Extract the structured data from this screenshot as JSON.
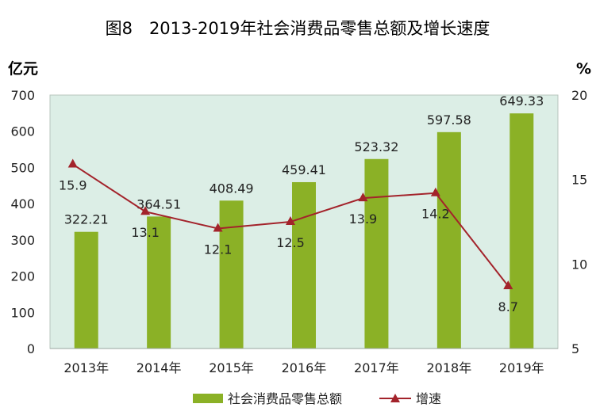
{
  "chart_data": {
    "type": "bar",
    "title": "图8　2013-2019年社会消费品零售总额及增长速度",
    "ylabel_left": "亿元",
    "ylabel_right": "%",
    "categories": [
      "2013年",
      "2014年",
      "2015年",
      "2016年",
      "2017年",
      "2018年",
      "2019年"
    ],
    "series": [
      {
        "name": "社会消费品零售总额",
        "kind": "bar",
        "axis": "left",
        "values": [
          322.21,
          364.51,
          408.49,
          459.41,
          523.32,
          597.58,
          649.33
        ],
        "labels": [
          "322.21",
          "364.51",
          "408.49",
          "459.41",
          "523.32",
          "597.58",
          "649.33"
        ],
        "color": "#8BB126"
      },
      {
        "name": "增速",
        "kind": "line",
        "axis": "right",
        "values": [
          15.9,
          13.1,
          12.1,
          12.5,
          13.9,
          14.2,
          8.7
        ],
        "labels": [
          "15.9",
          "13.1",
          "12.1",
          "12.5",
          "13.9",
          "14.2",
          "8.7"
        ],
        "color": "#A3232B"
      }
    ],
    "ylim_left": [
      0,
      700
    ],
    "yticks_left": [
      "0",
      "100",
      "200",
      "300",
      "400",
      "500",
      "600",
      "700"
    ],
    "ylim_right": [
      5,
      20
    ],
    "yticks_right": [
      "5",
      "10",
      "15",
      "20"
    ],
    "plot_background": "#DCEEE6",
    "legend_position": "bottom-center"
  }
}
